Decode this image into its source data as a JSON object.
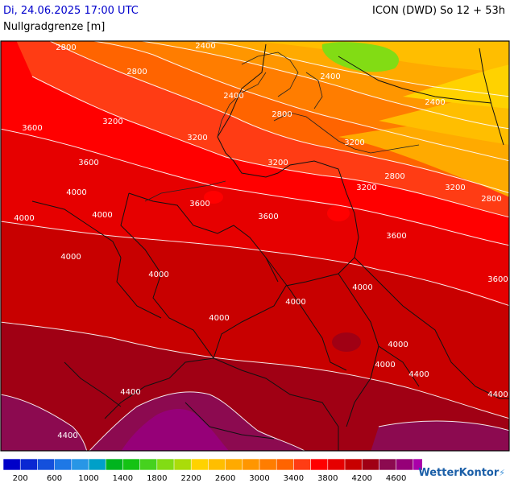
{
  "header": {
    "date": "Di, 24.06.2025 17:00 UTC",
    "model": "ICON (DWD) So 12 + 53h",
    "parameter": "Nullgradgrenze [m]"
  },
  "legend": {
    "colors": [
      "#0000c8",
      "#0a28d2",
      "#1450dc",
      "#1e78e6",
      "#2896e6",
      "#00a0c8",
      "#00b41e",
      "#14c314",
      "#46d21e",
      "#82dc14",
      "#aadc0a",
      "#ffd200",
      "#ffbe00",
      "#ffaa00",
      "#ff9600",
      "#ff7d00",
      "#ff6400",
      "#ff3c14",
      "#ff0000",
      "#e60000",
      "#c80000",
      "#a00014",
      "#8c0a50",
      "#960078",
      "#aa00aa"
    ],
    "tick_labels": [
      "200",
      "600",
      "1000",
      "1400",
      "1800",
      "2200",
      "2600",
      "3000",
      "3400",
      "3800",
      "4200",
      "4600"
    ]
  },
  "map": {
    "contour_labels": [
      "2800",
      "2800",
      "2400",
      "2400",
      "2400",
      "2800",
      "2400",
      "3200",
      "3200",
      "3600",
      "3200",
      "3600",
      "3200",
      "2800",
      "3200",
      "3200",
      "2800",
      "4000",
      "4000",
      "3600",
      "4000",
      "3600",
      "4000",
      "3600",
      "4000",
      "3600",
      "4000",
      "4000",
      "4000",
      "4000",
      "4000",
      "4400",
      "4400",
      "4400",
      "4400"
    ]
  },
  "logo": {
    "text": "WetterKontor"
  }
}
